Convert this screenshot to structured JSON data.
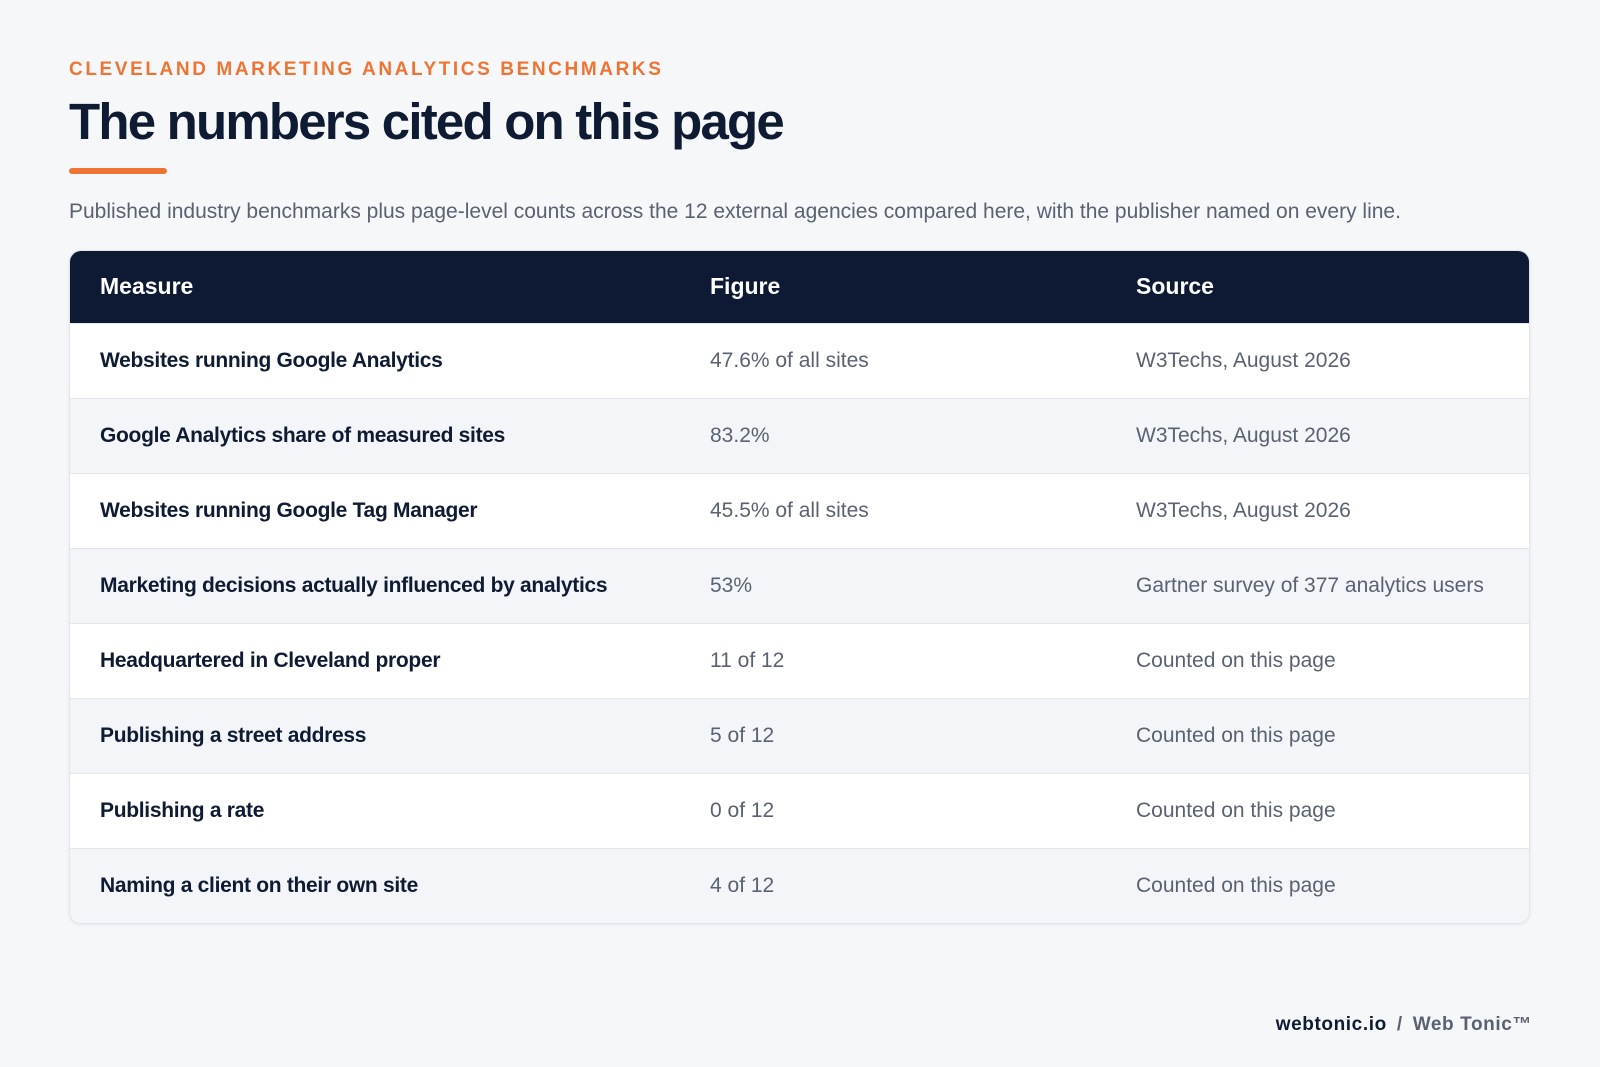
{
  "header": {
    "eyebrow": "CLEVELAND MARKETING ANALYTICS BENCHMARKS",
    "title": "The numbers cited on this page",
    "subtitle": "Published industry benchmarks plus page-level counts across the 12 external agencies compared here, with the publisher named on every line."
  },
  "table": {
    "columns": [
      "Measure",
      "Figure",
      "Source"
    ],
    "rows": [
      {
        "measure": "Websites running Google Analytics",
        "figure": "47.6% of all sites",
        "source": "W3Techs, August 2026"
      },
      {
        "measure": "Google Analytics share of measured sites",
        "figure": "83.2%",
        "source": "W3Techs, August 2026"
      },
      {
        "measure": "Websites running Google Tag Manager",
        "figure": "45.5% of all sites",
        "source": "W3Techs, August 2026"
      },
      {
        "measure": "Marketing decisions actually influenced by analytics",
        "figure": "53%",
        "source": "Gartner survey of 377 analytics users"
      },
      {
        "measure": "Headquartered in Cleveland proper",
        "figure": "11 of 12",
        "source": "Counted on this page"
      },
      {
        "measure": "Publishing a street address",
        "figure": "5 of 12",
        "source": "Counted on this page"
      },
      {
        "measure": "Publishing a rate",
        "figure": "0 of 12",
        "source": "Counted on this page"
      },
      {
        "measure": "Naming a client on their own site",
        "figure": "4 of 12",
        "source": "Counted on this page"
      }
    ]
  },
  "footer": {
    "domain": "webtonic.io",
    "separator": "/",
    "brand": "Web Tonic™"
  },
  "colors": {
    "accent": "#ef7433",
    "header_bg": "#0e1a33",
    "page_bg": "#f6f7f9"
  }
}
